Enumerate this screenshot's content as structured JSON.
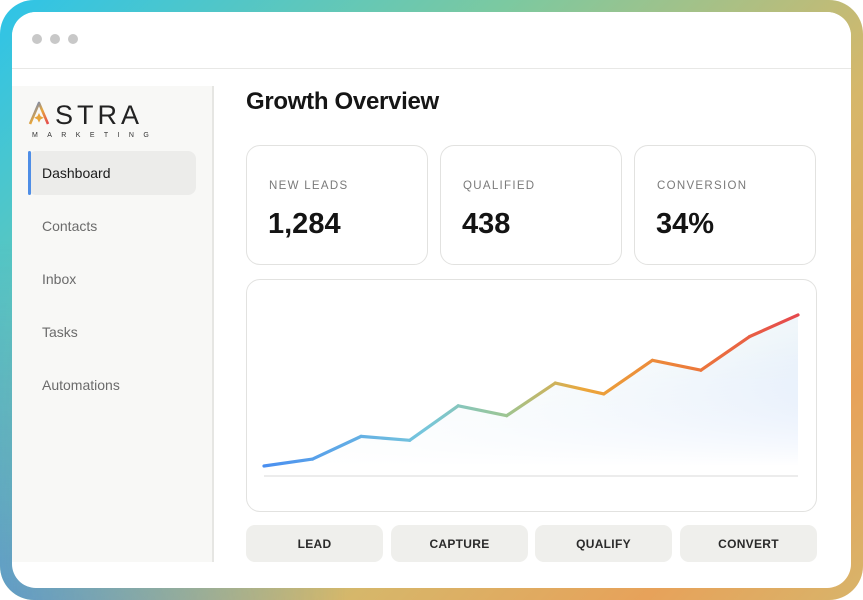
{
  "brand": {
    "name": "ASTRA",
    "tagline": "MARKETING"
  },
  "sidebar": {
    "items": [
      {
        "label": "Dashboard",
        "active": true
      },
      {
        "label": "Contacts",
        "active": false
      },
      {
        "label": "Inbox",
        "active": false
      },
      {
        "label": "Tasks",
        "active": false
      },
      {
        "label": "Automations",
        "active": false
      }
    ]
  },
  "main": {
    "title": "Growth Overview",
    "metrics": [
      {
        "label": "NEW LEADS",
        "value": "1,284"
      },
      {
        "label": "QUALIFIED",
        "value": "438"
      },
      {
        "label": "CONVERSION",
        "value": "34%"
      }
    ],
    "stages": [
      "LEAD",
      "CAPTURE",
      "QUALIFY",
      "CONVERT"
    ]
  },
  "chart_data": {
    "type": "area",
    "x": [
      1,
      2,
      3,
      4,
      5,
      6,
      7,
      8,
      9,
      10,
      11,
      12
    ],
    "values": [
      0,
      7,
      30,
      26,
      61,
      51,
      84,
      73,
      107,
      97,
      131,
      153
    ],
    "ylim": [
      0,
      160
    ],
    "grid": false,
    "colors": {
      "start": "#4a8ff0",
      "mid": "#9cc694",
      "late": "#eca63a",
      "end": "#e5484d"
    }
  },
  "colors": {
    "accent": "#4f8ee6"
  }
}
